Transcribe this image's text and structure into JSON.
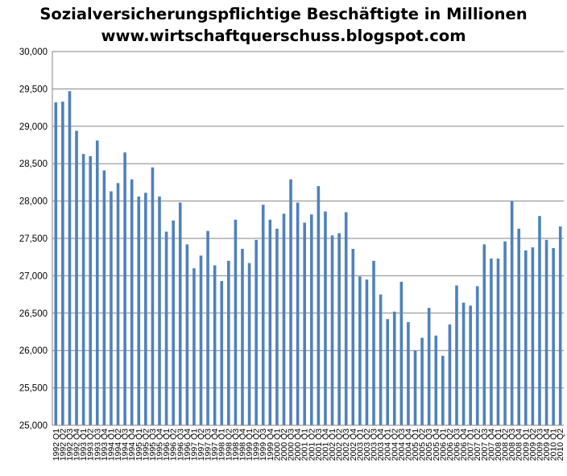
{
  "chart_data": {
    "type": "bar",
    "title": "Sozialversicherungspflichtige Beschäftigte in Millionen",
    "subtitle": "www.wirtschaftquerschuss.blogspot.com",
    "xlabel": "",
    "ylabel": "",
    "ylim": [
      25000,
      30000
    ],
    "ytick_values": [
      25000,
      25500,
      26000,
      26500,
      27000,
      27500,
      28000,
      28500,
      29000,
      29500,
      30000
    ],
    "ytick_labels": [
      "25,000",
      "25,500",
      "26,000",
      "26,500",
      "27,000",
      "27,500",
      "28,000",
      "28,500",
      "29,000",
      "29,500",
      "30,000"
    ],
    "grid": true,
    "legend": "none",
    "bar_color": "#4f81bd",
    "categories": [
      "1992 Q1",
      "1992 Q2",
      "1992 Q3",
      "1992 Q4",
      "1993 Q1",
      "1993 Q2",
      "1993 Q3",
      "1993 Q4",
      "1994 Q1",
      "1994 Q2",
      "1994 Q3",
      "1994 Q4",
      "1995 Q1",
      "1995 Q2",
      "1995 Q3",
      "1995 Q4",
      "1996 Q1",
      "1996 Q2",
      "1996 Q3",
      "1996 Q4",
      "1997 Q1",
      "1997 Q2",
      "1997 Q3",
      "1997 Q4",
      "1998 Q1",
      "1998 Q2",
      "1998 Q3",
      "1998 Q4",
      "1999 Q1",
      "1999 Q2",
      "1999 Q3",
      "1999 Q4",
      "2000 Q1",
      "2000 Q2",
      "2000 Q3",
      "2000 Q4",
      "2001 Q1",
      "2001 Q2",
      "2001 Q3",
      "2001 Q4",
      "2002 Q1",
      "2002 Q2",
      "2002 Q3",
      "2002 Q4",
      "2003 Q1",
      "2003 Q2",
      "2003 Q3",
      "2003 Q4",
      "2004 Q1",
      "2004 Q2",
      "2004 Q3",
      "2004 Q4",
      "2005 Q1",
      "2005 Q2",
      "2005 Q3",
      "2005 Q4",
      "2006 Q1",
      "2006 Q2",
      "2006 Q3",
      "2006 Q4",
      "2007 Q1",
      "2007 Q2",
      "2007 Q3",
      "2007 Q4",
      "2008 Q1",
      "2008 Q2",
      "2008 Q3",
      "2008 Q4",
      "2009 Q1",
      "2009 Q2",
      "2009 Q3",
      "2009 Q4",
      "2010 Q1",
      "2010 Q2"
    ],
    "values": [
      29320,
      29330,
      29470,
      28940,
      28630,
      28600,
      28810,
      28410,
      28130,
      28240,
      28650,
      28290,
      28060,
      28110,
      28450,
      28060,
      27590,
      27740,
      27980,
      27420,
      27100,
      27270,
      27600,
      27140,
      26930,
      27200,
      27750,
      27360,
      27170,
      27480,
      27950,
      27750,
      27630,
      27830,
      28290,
      27980,
      27710,
      27820,
      28200,
      27860,
      27540,
      27570,
      27850,
      27360,
      26990,
      26950,
      27200,
      26750,
      26420,
      26520,
      26920,
      26380,
      26000,
      26170,
      26570,
      26200,
      25930,
      26350,
      26870,
      26640,
      26600,
      26860,
      27420,
      27230,
      27230,
      27460,
      28000,
      27630,
      27340,
      27380,
      27800,
      27480,
      27370,
      27660
    ]
  }
}
